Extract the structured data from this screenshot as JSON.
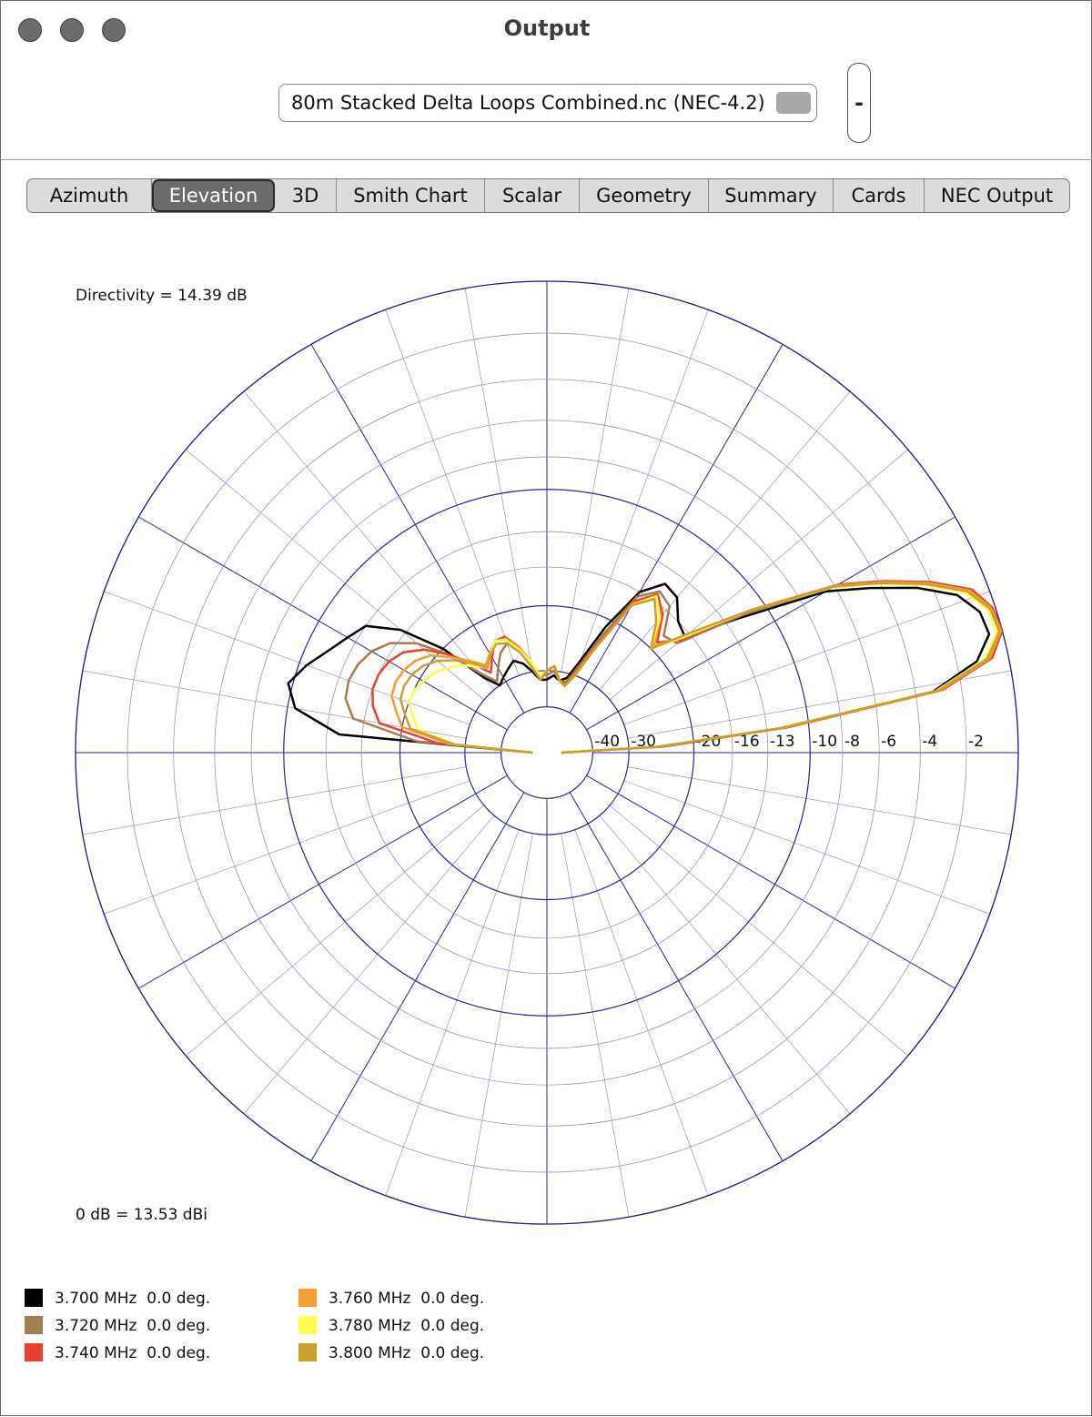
{
  "window": {
    "title": "Output"
  },
  "file_selector": {
    "label": "80m Stacked Delta Loops Combined.nc (NEC-4.2)"
  },
  "stepper": {
    "label": "-"
  },
  "tabs": [
    "Azimuth",
    "Elevation",
    "3D",
    "Smith Chart",
    "Scalar",
    "Geometry",
    "Summary",
    "Cards",
    "NEC Output"
  ],
  "selected_tab": 1,
  "chart_data": {
    "type": "polar",
    "radial_scale": "arrl-log",
    "annotations": [
      "Directivity = 14.39 dB",
      "0 dB = 13.53 dBi"
    ],
    "rmax": 0,
    "rticks": [
      -40,
      -30,
      -20,
      -16,
      -13,
      -10,
      -8,
      -6,
      -4,
      -2
    ],
    "x": [
      0,
      3,
      6,
      9,
      12,
      15,
      18,
      21,
      24,
      27,
      30,
      35,
      40,
      45,
      50,
      55,
      60,
      65,
      70,
      75,
      80,
      85,
      90,
      95,
      100,
      105,
      110,
      115,
      120,
      125,
      130,
      135,
      140,
      145,
      150,
      155,
      160,
      165,
      170,
      175,
      180
    ],
    "series": [
      {
        "name": "3.700 MHz  0.0 deg.",
        "color": "#000000",
        "values": [
          -60,
          -24,
          -11.5,
          -3.2,
          -1.2,
          -0.5,
          -0.6,
          -1.2,
          -2.6,
          -4.5,
          -6.5,
          -12,
          -16.5,
          -16,
          -14.5,
          -14.2,
          -16,
          -21,
          -27,
          -31,
          -32,
          -31,
          -32,
          -32,
          -30,
          -28,
          -27,
          -28,
          -29,
          -30,
          -27,
          -20,
          -15.5,
          -13,
          -12.3,
          -11.5,
          -10.5,
          -9.7,
          -10.5,
          -14,
          -60
        ]
      },
      {
        "name": "3.720 MHz  0.0 deg.",
        "color": "#a67c52",
        "values": [
          -60,
          -24.5,
          -11.5,
          -2.9,
          -0.7,
          -0.1,
          -0.2,
          -0.8,
          -2.2,
          -4,
          -6,
          -11.5,
          -17.5,
          -18,
          -15.5,
          -15,
          -16.5,
          -22.5,
          -28.5,
          -32,
          -32,
          -30,
          -31,
          -31,
          -28,
          -25,
          -24,
          -25,
          -27,
          -29,
          -26,
          -21,
          -17.5,
          -15.5,
          -14.5,
          -14,
          -13.8,
          -14,
          -15,
          -22,
          -60
        ]
      },
      {
        "name": "3.740 MHz  0.0 deg.",
        "color": "#e8412c",
        "values": [
          -60,
          -24.5,
          -11.5,
          -2.8,
          -0.6,
          0,
          -0.1,
          -0.6,
          -2,
          -3.8,
          -5.8,
          -11,
          -17,
          -19,
          -16.5,
          -15.3,
          -17,
          -23.5,
          -29,
          -32.5,
          -32,
          -29,
          -30,
          -31,
          -28,
          -25,
          -23,
          -23,
          -25,
          -27,
          -24,
          -21,
          -18.5,
          -17,
          -16.3,
          -16,
          -16,
          -16.5,
          -17.5,
          -25,
          -60
        ]
      },
      {
        "name": "3.760 MHz  0.0 deg.",
        "color": "#f0a030",
        "values": [
          -60,
          -25,
          -11.8,
          -2.9,
          -0.7,
          -0.05,
          -0.15,
          -0.7,
          -2.1,
          -3.9,
          -5.9,
          -11,
          -16.5,
          -19.5,
          -16.8,
          -15.5,
          -17.3,
          -24,
          -29.5,
          -33,
          -32,
          -29,
          -30,
          -31,
          -28,
          -25,
          -23.3,
          -23,
          -24.3,
          -25.5,
          -23.5,
          -21.5,
          -19.5,
          -18.5,
          -18,
          -17.8,
          -18,
          -19,
          -20,
          -27,
          -60
        ]
      },
      {
        "name": "3.780 MHz  0.0 deg.",
        "color": "#ffff4d",
        "values": [
          -60,
          -25,
          -12,
          -3.1,
          -0.9,
          -0.2,
          -0.3,
          -0.9,
          -2.3,
          -4.1,
          -6.1,
          -11,
          -16.5,
          -20,
          -17,
          -15.5,
          -17.5,
          -24,
          -30,
          -33,
          -32,
          -29,
          -30,
          -31,
          -28,
          -25.5,
          -23.5,
          -23,
          -24.5,
          -26,
          -24.5,
          -23,
          -22,
          -21,
          -20.5,
          -20,
          -20,
          -21,
          -22,
          -28,
          -60
        ]
      },
      {
        "name": "3.800 MHz  0.0 deg.",
        "color": "#c8a030",
        "values": [
          -60,
          -25,
          -12,
          -3,
          -0.8,
          -0.1,
          -0.2,
          -0.8,
          -2.2,
          -4,
          -6,
          -11,
          -16,
          -20,
          -17.5,
          -15.8,
          -17.5,
          -24,
          -30,
          -33,
          -32,
          -29,
          -30,
          -32,
          -29,
          -26,
          -24,
          -23.5,
          -24.5,
          -26,
          -24,
          -22,
          -20.5,
          -19.5,
          -19,
          -18.8,
          -19,
          -20,
          -21,
          -28,
          -60
        ]
      }
    ]
  }
}
